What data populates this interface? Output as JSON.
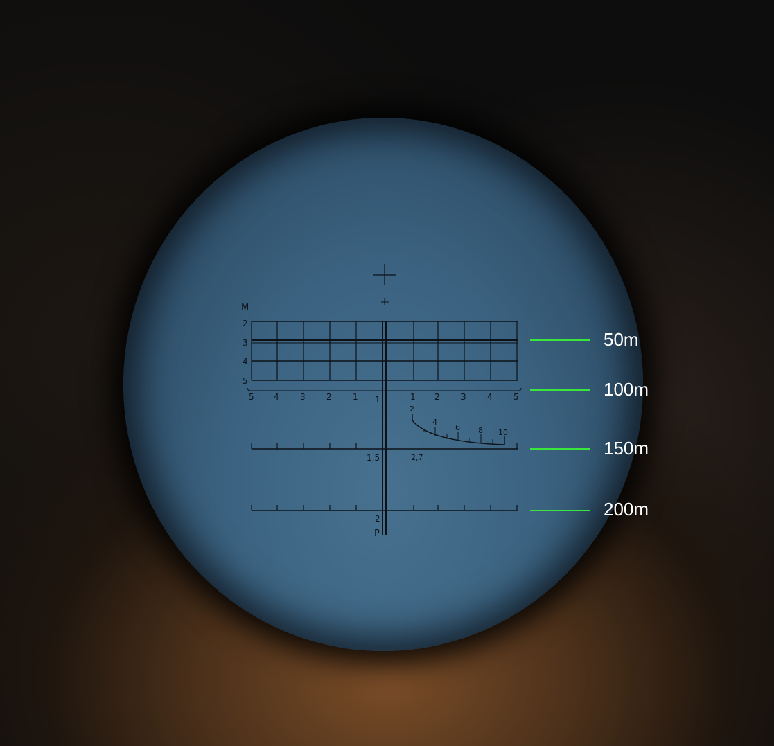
{
  "reticle": {
    "height_header": "M",
    "height_marks": [
      "2",
      "3",
      "4",
      "5"
    ],
    "lead_marks": [
      "5",
      "4",
      "3",
      "2",
      "1",
      "1",
      "2",
      "3",
      "4",
      "5"
    ],
    "center_mark": "1",
    "speed_marks": [
      "2",
      "4",
      "6",
      "8",
      "10"
    ],
    "mid_labels": [
      "1,5",
      "2,7"
    ],
    "bottom_mark": "2",
    "bottom_letter": "P"
  },
  "range_markers": [
    {
      "label": "50m"
    },
    {
      "label": "100m"
    },
    {
      "label": "150m"
    },
    {
      "label": "200m"
    }
  ],
  "colors": {
    "marker": "#39e639",
    "reticle": "#0c1218",
    "sky": "#3c6482"
  }
}
